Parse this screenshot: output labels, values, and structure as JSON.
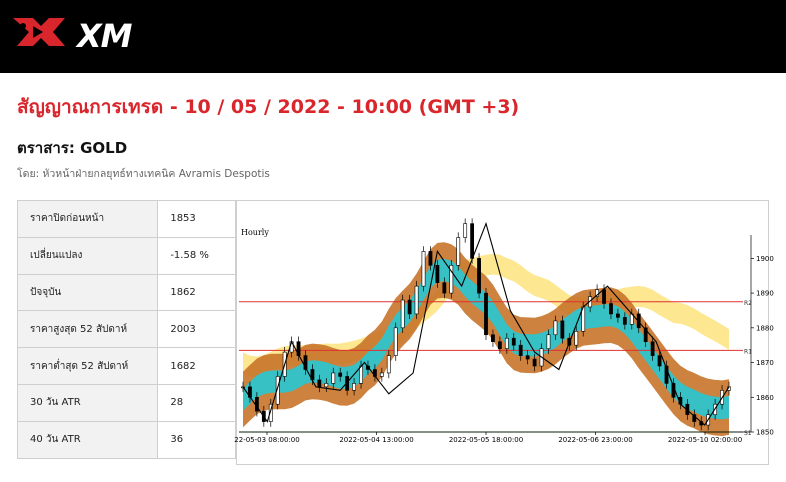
{
  "brand": {
    "name": "XM"
  },
  "title": "สัญญาณการเทรด - 10 / 05 / 2022 - 10:00 (GMT +3)",
  "instrument": "ตราสาร: GOLD",
  "author": "โดย: หัวหน้าฝ่ายกลยุทธ์ทางเทคนิค Avramis Despotis",
  "stats": [
    {
      "label": "ราคาปิดก่อนหน้า",
      "value": "1853"
    },
    {
      "label": "เปลี่ยนแปลง",
      "value": "-1.58 %"
    },
    {
      "label": "ปัจจุบัน",
      "value": "1862"
    },
    {
      "label": "ราคาสูงสุด 52 สัปดาห์",
      "value": "2003"
    },
    {
      "label": "ราคาต่ำสุด 52 สัปดาห์",
      "value": "1682"
    },
    {
      "label": "30 วัน ATR",
      "value": "28"
    },
    {
      "label": "40 วัน ATR",
      "value": "36"
    }
  ],
  "colors": {
    "accent": "#d9262c",
    "teal": "#2ec4cc",
    "orange": "#c8742a",
    "yellow": "#fde68a",
    "line_red": "#e03030",
    "line_green": "#2e7d32"
  },
  "chart_data": {
    "type": "line",
    "timeframe": "Hourly",
    "x_tick_labels": [
      "22-05-03 08:00:00",
      "2022-05-04 13:00:00",
      "2022-05-05 18:00:00",
      "2022-05-06 23:00:00",
      "2022-05-10 02:00:00"
    ],
    "y_ticks": [
      1850,
      1860,
      1870,
      1880,
      1890,
      1900
    ],
    "ylim": [
      1850,
      1905
    ],
    "levels": [
      {
        "name": "R2",
        "value": 1887.5
      },
      {
        "name": "R1",
        "value": 1873.5
      },
      {
        "name": "S1",
        "value": 1850
      }
    ],
    "zigzag": [
      1863,
      1853,
      1876,
      1863,
      1862,
      1870,
      1861,
      1867,
      1902,
      1892,
      1910,
      1885,
      1873,
      1868,
      1886,
      1892,
      1884,
      1876,
      1858,
      1852,
      1863
    ],
    "price": [
      1863,
      1860,
      1856,
      1853,
      1858,
      1866,
      1873,
      1876,
      1872,
      1868,
      1865,
      1863,
      1864,
      1867,
      1866,
      1862,
      1864,
      1869,
      1868,
      1866,
      1867,
      1872,
      1880,
      1888,
      1884,
      1892,
      1902,
      1898,
      1893,
      1890,
      1898,
      1906,
      1910,
      1900,
      1890,
      1878,
      1876,
      1874,
      1877,
      1875,
      1872,
      1871,
      1869,
      1874,
      1878,
      1882,
      1877,
      1875,
      1879,
      1886,
      1889,
      1891,
      1887,
      1884,
      1883,
      1881,
      1884,
      1880,
      1876,
      1872,
      1869,
      1864,
      1860,
      1858,
      1855,
      1853,
      1852,
      1855,
      1858,
      1862,
      1863
    ]
  }
}
